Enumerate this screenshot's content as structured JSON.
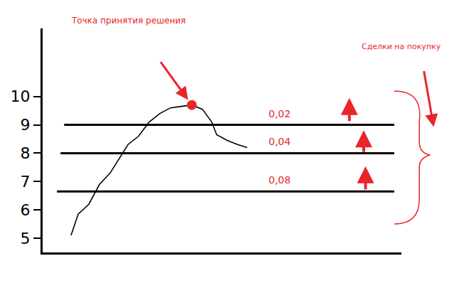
{
  "chart_data": {
    "type": "line",
    "x": [
      0,
      1,
      2.5,
      4,
      5.5,
      6.5,
      8,
      9.5,
      11,
      12.5,
      14,
      15.5,
      17,
      18.5,
      19.8,
      20.5,
      22,
      23.5,
      24.8
    ],
    "values": [
      5.1,
      5.85,
      6.2,
      6.9,
      7.3,
      7.7,
      8.3,
      8.6,
      9.1,
      9.4,
      9.6,
      9.65,
      9.7,
      9.55,
      9.1,
      8.65,
      8.45,
      8.3,
      8.2
    ],
    "color": "#000000",
    "xlim": [
      -4,
      46.5
    ],
    "ylim": [
      4.5,
      12.4
    ],
    "yticks": [
      5,
      6,
      7,
      8,
      9,
      10
    ],
    "tick_labels": "y",
    "grid": false,
    "decision_point": {
      "x": 17,
      "y": 9.7,
      "label": "Точка принятия решения"
    },
    "levels": [
      {
        "value": 9,
        "label": "0,02"
      },
      {
        "value": 8,
        "label": "0,04"
      },
      {
        "value": 6.65,
        "label": "0,08"
      }
    ],
    "trades_label": "Сделки на покупку"
  }
}
